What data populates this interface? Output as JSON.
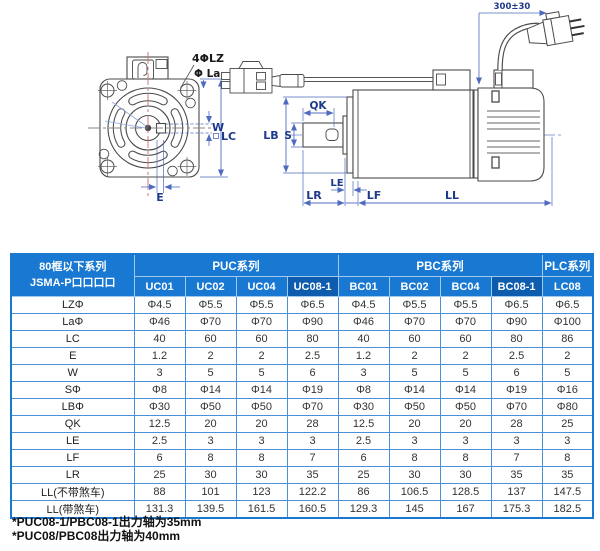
{
  "drawing": {
    "labels": {
      "bolt_holes": "4ΦLZ",
      "pilot_dia": "Φ La",
      "w": "W",
      "lc": "LC",
      "e": "E",
      "qk": "QK",
      "lb": "LB",
      "s": "S",
      "le": "LE",
      "lr": "LR",
      "lf": "LF",
      "ll": "LL",
      "cable_length": "300±30"
    }
  },
  "table": {
    "corner_header": {
      "line1": "80框以下系列",
      "line2": "JSMA-P口口口口"
    },
    "groups": [
      {
        "label": "PUC系列",
        "span": 4
      },
      {
        "label": "PBC系列",
        "span": 4
      },
      {
        "label": "PLC系列",
        "span": 1
      }
    ],
    "models": [
      "UC01",
      "UC02",
      "UC04",
      "UC08-1",
      "BC01",
      "BC02",
      "BC04",
      "BC08-1",
      "LC08"
    ],
    "dark_models": [
      "UC08-1",
      "BC08-1"
    ],
    "rows": [
      {
        "label": "LZΦ",
        "values": [
          "Φ4.5",
          "Φ5.5",
          "Φ5.5",
          "Φ6.5",
          "Φ4.5",
          "Φ5.5",
          "Φ5.5",
          "Φ6.5",
          "Φ6.5"
        ]
      },
      {
        "label": "LaΦ",
        "values": [
          "Φ46",
          "Φ70",
          "Φ70",
          "Φ90",
          "Φ46",
          "Φ70",
          "Φ70",
          "Φ90",
          "Φ100"
        ]
      },
      {
        "label": "LC",
        "values": [
          "40",
          "60",
          "60",
          "80",
          "40",
          "60",
          "60",
          "80",
          "86"
        ]
      },
      {
        "label": "E",
        "values": [
          "1.2",
          "2",
          "2",
          "2.5",
          "1.2",
          "2",
          "2",
          "2.5",
          "2"
        ]
      },
      {
        "label": "W",
        "values": [
          "3",
          "5",
          "5",
          "6",
          "3",
          "5",
          "5",
          "6",
          "5"
        ]
      },
      {
        "label": "SΦ",
        "values": [
          "Φ8",
          "Φ14",
          "Φ14",
          "Φ19",
          "Φ8",
          "Φ14",
          "Φ14",
          "Φ19",
          "Φ16"
        ]
      },
      {
        "label": "LBΦ",
        "values": [
          "Φ30",
          "Φ50",
          "Φ50",
          "Φ70",
          "Φ30",
          "Φ50",
          "Φ50",
          "Φ70",
          "Φ80"
        ]
      },
      {
        "label": "QK",
        "values": [
          "12.5",
          "20",
          "20",
          "28",
          "12.5",
          "20",
          "20",
          "28",
          "25"
        ]
      },
      {
        "label": "LE",
        "values": [
          "2.5",
          "3",
          "3",
          "3",
          "2.5",
          "3",
          "3",
          "3",
          "3"
        ]
      },
      {
        "label": "LF",
        "values": [
          "6",
          "8",
          "8",
          "7",
          "6",
          "8",
          "8",
          "7",
          "8"
        ]
      },
      {
        "label": "LR",
        "values": [
          "25",
          "30",
          "30",
          "35",
          "25",
          "30",
          "30",
          "35",
          "35"
        ]
      },
      {
        "label": "LL(不带煞车)",
        "values": [
          "88",
          "101",
          "123",
          "122.2",
          "86",
          "106.5",
          "128.5",
          "137",
          "147.5"
        ]
      },
      {
        "label": "LL(带煞车)",
        "values": [
          "131.3",
          "139.5",
          "161.5",
          "160.5",
          "129.3",
          "145",
          "167",
          "175.3",
          "182.5"
        ]
      }
    ]
  },
  "footnotes": [
    "*PUC08-1/PBC08-1出力轴为35mm",
    "*PUC08/PBC08出力轴为40mm"
  ],
  "colors": {
    "header_blue": "#1878d2",
    "header_dark_blue": "#0d5cae",
    "grid_blue": "#4a90d9",
    "dim_blue": "#4f6bbf",
    "dim_text_navy": "#1d3a8a",
    "centerline_red": "#cc6b6b",
    "line_gray": "#4a4a4a"
  }
}
